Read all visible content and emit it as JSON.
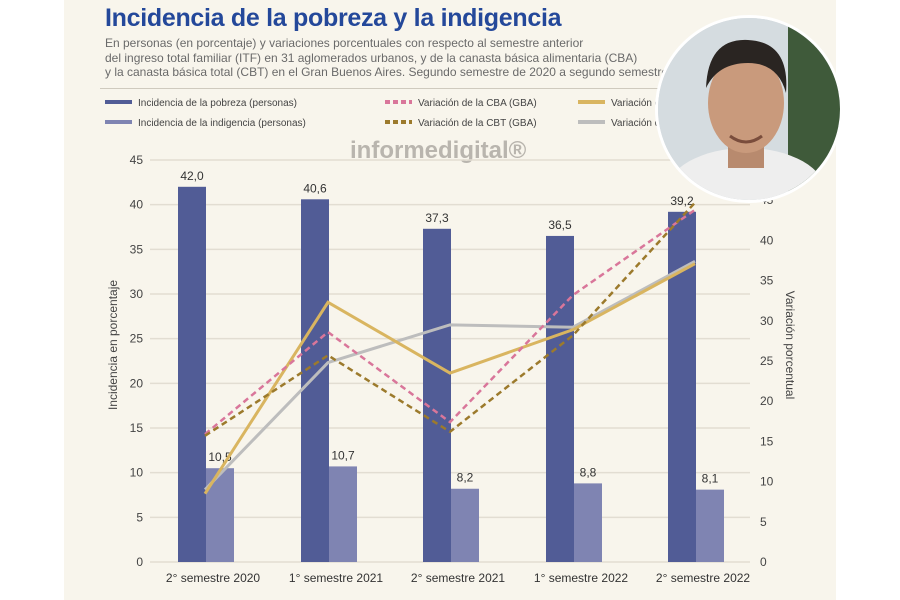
{
  "header": {
    "title": "Incidencia de la pobreza y la indigencia",
    "subtitle": [
      "En personas (en porcentaje) y variaciones porcentuales con respecto al semestre anterior",
      "del ingreso total familiar (ITF) en 31 aglomerados urbanos, y de la canasta básica alimentaria (CBA)",
      "y la canasta básica total (CBT) en el Gran Buenos Aires. Segundo semestre de 2020 a segundo semestre de 20"
    ]
  },
  "watermark": "informedigital®",
  "chart_data": {
    "type": "bar",
    "title": "Incidencia de la pobreza y la indigencia",
    "categories": [
      "2° semestre 2020",
      "1° semestre 2021",
      "2° semestre 2021",
      "1° semestre 2022",
      "2° semestre 2022"
    ],
    "ylabel": "Incidencia en porcentaje",
    "ylim": [
      0,
      45
    ],
    "yticks": [
      "0",
      "5",
      "10",
      "15",
      "20",
      "25",
      "30",
      "35",
      "40",
      "45"
    ],
    "y2label": "Variación porcentual",
    "y2lim": [
      0,
      50
    ],
    "y2ticks": [
      "0",
      "5",
      "10",
      "15",
      "20",
      "25",
      "30",
      "35",
      "40",
      "45"
    ],
    "grid": true,
    "legend_position": "top",
    "bars": [
      {
        "name": "Incidencia de la pobreza (personas)",
        "color": "#515c96",
        "values": [
          42.0,
          40.6,
          37.3,
          36.5,
          39.2
        ],
        "labels": [
          "42,0",
          "40,6",
          "37,3",
          "36,5",
          "39,2"
        ]
      },
      {
        "name": "Incidencia de la indigencia (personas)",
        "color": "#7f84b2",
        "values": [
          10.5,
          10.7,
          8.2,
          8.8,
          8.1
        ],
        "labels": [
          "10,5",
          "10,7",
          "8,2",
          "8,8",
          "8,1"
        ]
      }
    ],
    "lines": [
      {
        "name": "Variación de la CBA (GBA)",
        "color": "#d9769a",
        "dash": true,
        "values": [
          15.9,
          28.6,
          17.4,
          33.2,
          43.8
        ]
      },
      {
        "name": "Variación de la CBT (GBA)",
        "color": "#9c7a2c",
        "dash": true,
        "values": [
          15.7,
          25.7,
          16.2,
          28.2,
          44.7
        ]
      },
      {
        "name": "Variación de l",
        "color": "#d9b560",
        "dash": false,
        "values": [
          8.5,
          32.3,
          23.5,
          28.9,
          37.1
        ]
      },
      {
        "name": "Variación de",
        "color": "#bdbdbd",
        "dash": false,
        "values": [
          9.0,
          24.8,
          29.5,
          29.2,
          37.4
        ]
      }
    ]
  }
}
